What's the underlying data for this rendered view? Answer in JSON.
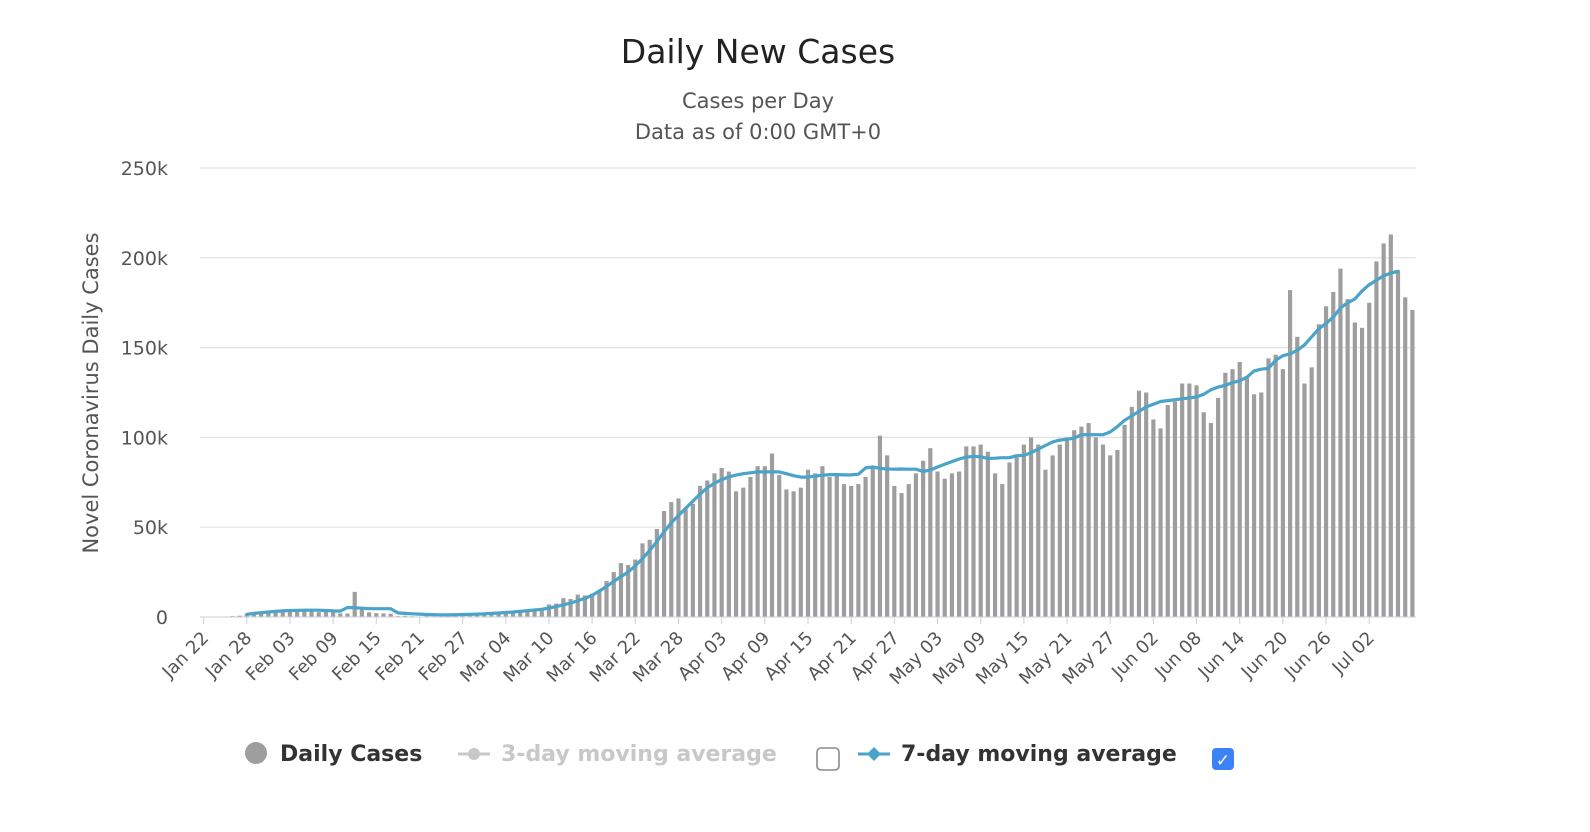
{
  "chart_data": {
    "type": "bar",
    "title": "Daily New Cases",
    "subtitle_lines": [
      "Cases per Day",
      "Data as of 0:00 GMT+0"
    ],
    "ylabel": "Novel Coronavirus Daily Cases",
    "xlabel": "",
    "ylim": [
      0,
      250000
    ],
    "y_ticks": [
      0,
      50000,
      100000,
      150000,
      200000,
      250000
    ],
    "y_tick_labels": [
      "0",
      "50k",
      "100k",
      "150k",
      "200k",
      "250k"
    ],
    "x_tick_labels": [
      "Jan 22",
      "Jan 28",
      "Feb 03",
      "Feb 09",
      "Feb 15",
      "Feb 21",
      "Feb 27",
      "Mar 04",
      "Mar 10",
      "Mar 16",
      "Mar 22",
      "Mar 28",
      "Apr 03",
      "Apr 09",
      "Apr 15",
      "Apr 21",
      "Apr 27",
      "May 03",
      "May 09",
      "May 15",
      "May 21",
      "May 27",
      "Jun 02",
      "Jun 08",
      "Jun 14",
      "Jun 20",
      "Jun 26",
      "Jul 02"
    ],
    "x_tick_every_n_days": 6,
    "first_day": "Jan 22",
    "grid": true,
    "legend_position": "bottom",
    "series": [
      {
        "name": "Daily Cases",
        "type": "bar",
        "color": "#9e9e9e",
        "values": [
          0,
          100,
          200,
          300,
          500,
          700,
          1500,
          2000,
          2100,
          2600,
          2800,
          3200,
          3900,
          3700,
          3200,
          3800,
          2700,
          3000,
          2500,
          2000,
          1900,
          14000,
          5000,
          2600,
          2100,
          2000,
          1800,
          500,
          700,
          400,
          200,
          500,
          400,
          500,
          600,
          900,
          1200,
          1800,
          1900,
          2300,
          2500,
          2700,
          2800,
          2900,
          3500,
          3900,
          4000,
          4200,
          7000,
          7500,
          10500,
          10000,
          12500,
          12000,
          13000,
          15000,
          20000,
          25000,
          30000,
          29000,
          32000,
          41000,
          43000,
          49000,
          59000,
          64000,
          66000,
          60000,
          63000,
          73000,
          76000,
          80000,
          83000,
          81000,
          70000,
          72000,
          78000,
          84000,
          84000,
          91000,
          79000,
          71000,
          70000,
          72000,
          82000,
          80000,
          84000,
          78000,
          80000,
          74000,
          73000,
          74000,
          78000,
          84000,
          101000,
          90000,
          73000,
          69000,
          74000,
          80000,
          87000,
          94000,
          81000,
          77000,
          80000,
          81000,
          95000,
          95000,
          96000,
          92000,
          80000,
          74000,
          86000,
          90000,
          96000,
          100000,
          96000,
          82000,
          90000,
          96000,
          100000,
          104000,
          106000,
          108000,
          100000,
          96000,
          90000,
          93000,
          107000,
          117000,
          126000,
          125000,
          110000,
          105000,
          118000,
          120000,
          130000,
          130000,
          129000,
          114000,
          108000,
          122000,
          136000,
          138000,
          142000,
          134000,
          124000,
          125000,
          144000,
          146000,
          138000,
          182000,
          156000,
          130000,
          139000,
          163000,
          173000,
          181000,
          194000,
          177000,
          164000,
          161000,
          175000,
          198000,
          208000,
          213000,
          193000,
          178000,
          171000
        ]
      },
      {
        "name": "3-day moving average",
        "type": "line",
        "color": "#c8c8c8",
        "visible": false,
        "checked": false
      },
      {
        "name": "7-day moving average",
        "type": "line",
        "color": "#4aa3c8",
        "visible": true,
        "checked": true,
        "values": [
          null,
          null,
          null,
          null,
          null,
          null,
          1500,
          2000,
          2400,
          2800,
          3100,
          3400,
          3600,
          3700,
          3800,
          3800,
          3800,
          3600,
          3400,
          3300,
          5300,
          5100,
          4900,
          4700,
          4600,
          4600,
          4600,
          2300,
          2000,
          1800,
          1600,
          1400,
          1300,
          1200,
          1200,
          1300,
          1400,
          1500,
          1600,
          1800,
          2000,
          2200,
          2500,
          2800,
          3100,
          3500,
          3900,
          4300,
          5000,
          5800,
          6800,
          7800,
          9000,
          10400,
          12000,
          14500,
          17000,
          19800,
          22500,
          25000,
          28500,
          32500,
          37000,
          42000,
          47500,
          52500,
          56500,
          60500,
          64500,
          68500,
          72000,
          74500,
          76500,
          78000,
          79000,
          79800,
          80300,
          80800,
          80800,
          80800,
          80800,
          79800,
          78700,
          77900,
          77900,
          78500,
          78900,
          79300,
          79300,
          79100,
          79100,
          79500,
          83000,
          83500,
          82800,
          82400,
          82300,
          82400,
          82300,
          82300,
          81000,
          81800,
          83500,
          85000,
          86500,
          88000,
          89000,
          89500,
          89200,
          88300,
          88400,
          88700,
          88700,
          89800,
          90000,
          91500,
          93500,
          95500,
          97500,
          98500,
          99000,
          99500,
          101500,
          101500,
          101500,
          101500,
          103000,
          106000,
          109500,
          112000,
          114500,
          117000,
          118500,
          120000,
          120500,
          121000,
          121500,
          122000,
          122500,
          124000,
          126500,
          128000,
          129000,
          130500,
          131500,
          133500,
          137000,
          138000,
          138500,
          143000,
          145500,
          146500,
          148500,
          151500,
          156000,
          160500,
          163500,
          167000,
          172000,
          175000,
          177000,
          181500,
          185000,
          187500,
          190000,
          191500,
          192500
        ]
      }
    ]
  },
  "legend": {
    "items": [
      {
        "label": "Daily Cases",
        "color": "#9e9e9e",
        "active": true
      },
      {
        "label": "3-day moving average",
        "color": "#c8c8c8",
        "active": false
      },
      {
        "label": "7-day moving average",
        "color": "#4aa3c8",
        "active": true
      }
    ],
    "checkbox_checked_color": "#3b82f6",
    "checkmark_glyph": "✓",
    "icons": {
      "daily": "circle-marker-icon",
      "ma3": "line-circle-marker-icon",
      "ma7": "line-diamond-marker-icon"
    }
  }
}
